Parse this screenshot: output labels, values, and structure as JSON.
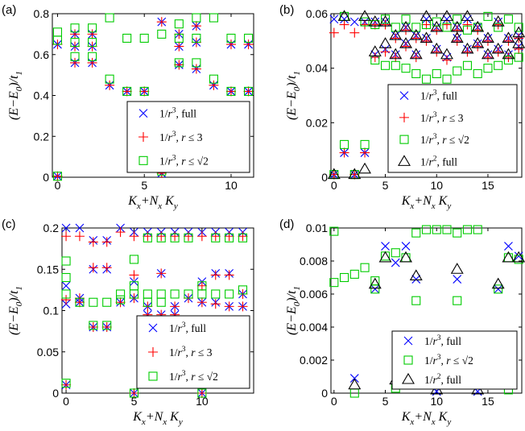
{
  "chart_data": [
    {
      "type": "scatter",
      "panel_label": "(a)",
      "xlabel": "K_x+N_x K_y",
      "ylabel": "(E−E_0)/t_1",
      "xlim": [
        -0.3,
        11.3
      ],
      "ylim": [
        0,
        0.8
      ],
      "xticks": [
        0,
        5,
        10
      ],
      "yticks": [
        0,
        0.2,
        0.4,
        0.6,
        0.8
      ],
      "ytick_labels": [
        "0",
        "0.2",
        "0.4",
        "0.6",
        "0.8"
      ],
      "legend": {
        "position": "lower-right",
        "entries": [
          "1/r^3, full",
          "1/r^3, r ≤ 3",
          "1/r^3, r ≤ √2"
        ]
      },
      "series": [
        {
          "legend_index": 0,
          "marker": "x",
          "color": "#0000ff",
          "x": [
            0,
            0,
            1,
            1,
            1,
            2,
            2,
            2,
            3,
            4,
            5,
            6,
            6,
            7,
            7,
            7,
            8,
            8,
            8,
            9,
            10,
            10,
            11,
            11
          ],
          "y": [
            0.005,
            0.65,
            0.7,
            0.64,
            0.56,
            0.7,
            0.64,
            0.56,
            0.45,
            0.42,
            0.42,
            0.02,
            0.76,
            0.7,
            0.64,
            0.55,
            0.74,
            0.66,
            0.53,
            0.45,
            0.42,
            0.65,
            0.42,
            0.65
          ]
        },
        {
          "legend_index": 1,
          "marker": "+",
          "color": "#ff0000",
          "x": [
            0,
            0,
            1,
            1,
            1,
            2,
            2,
            2,
            3,
            4,
            5,
            6,
            6,
            7,
            7,
            7,
            8,
            8,
            8,
            9,
            10,
            10,
            11,
            11
          ],
          "y": [
            0.005,
            0.65,
            0.7,
            0.64,
            0.56,
            0.7,
            0.64,
            0.56,
            0.45,
            0.42,
            0.42,
            0.02,
            0.76,
            0.7,
            0.64,
            0.55,
            0.74,
            0.66,
            0.53,
            0.45,
            0.42,
            0.65,
            0.42,
            0.65
          ]
        },
        {
          "legend_index": 2,
          "marker": "square",
          "color": "#00cc00",
          "x": [
            0,
            0,
            0,
            1,
            1,
            1,
            2,
            2,
            2,
            3,
            3,
            4,
            4,
            5,
            5,
            6,
            6,
            7,
            7,
            7,
            8,
            8,
            8,
            9,
            9,
            10,
            10,
            11,
            11
          ],
          "y": [
            0.005,
            0.67,
            0.71,
            0.73,
            0.66,
            0.59,
            0.73,
            0.66,
            0.59,
            0.78,
            0.48,
            0.68,
            0.42,
            0.68,
            0.42,
            0.03,
            0.7,
            0.75,
            0.68,
            0.56,
            0.78,
            0.68,
            0.56,
            0.48,
            0.78,
            0.68,
            0.42,
            0.68,
            0.42
          ]
        }
      ]
    },
    {
      "type": "scatter",
      "panel_label": "(b)",
      "xlabel": "K_x+N_x K_y",
      "ylabel": "(E−E_0)/t_1",
      "xlim": [
        -0.3,
        18.3
      ],
      "ylim": [
        0,
        0.06
      ],
      "xticks": [
        0,
        5,
        10,
        15
      ],
      "yticks": [
        0,
        0.02,
        0.04,
        0.06
      ],
      "ytick_labels": [
        "0",
        "0.02",
        "0.04",
        "0.06"
      ],
      "legend": {
        "position": "lower-right",
        "entries": [
          "1/r^3, full",
          "1/r^3, r ≤ 3",
          "1/r^3, r ≤ √2",
          "1/r^2, full"
        ]
      },
      "series": [
        {
          "legend_index": 0,
          "marker": "x",
          "color": "#0000ff",
          "x": [
            0,
            0,
            1,
            1,
            2,
            2,
            3,
            3,
            4,
            4,
            5,
            5,
            6,
            6,
            7,
            7,
            8,
            8,
            9,
            9,
            10,
            10,
            11,
            11,
            12,
            12,
            13,
            13,
            14,
            14,
            15,
            15,
            16,
            16,
            17,
            17,
            18,
            18
          ],
          "y": [
            0.001,
            0.058,
            0.009,
            0.058,
            0.001,
            0.057,
            0.009,
            0.057,
            0.045,
            0.057,
            0.047,
            0.057,
            0.045,
            0.052,
            0.049,
            0.055,
            0.045,
            0.052,
            0.051,
            0.058,
            0.047,
            0.055,
            0.044,
            0.058,
            0.051,
            0.055,
            0.047,
            0.058,
            0.049,
            0.055,
            0.045,
            0.051,
            0.047,
            0.057,
            0.045,
            0.051,
            0.048,
            0.052
          ]
        },
        {
          "legend_index": 1,
          "marker": "+",
          "color": "#ff0000",
          "x": [
            0,
            0,
            1,
            1,
            2,
            2,
            3,
            3,
            4,
            4,
            5,
            5,
            6,
            6,
            7,
            7,
            8,
            8,
            9,
            9,
            10,
            10,
            11,
            11,
            12,
            12,
            13,
            13,
            14,
            14,
            15,
            15,
            16,
            16,
            17,
            17,
            18,
            18
          ],
          "y": [
            0.001,
            0.053,
            0.009,
            0.056,
            0.001,
            0.053,
            0.009,
            0.056,
            0.044,
            0.056,
            0.046,
            0.056,
            0.044,
            0.051,
            0.048,
            0.054,
            0.044,
            0.051,
            0.05,
            0.056,
            0.046,
            0.054,
            0.043,
            0.056,
            0.05,
            0.054,
            0.046,
            0.056,
            0.048,
            0.054,
            0.044,
            0.05,
            0.046,
            0.056,
            0.044,
            0.05,
            0.047,
            0.051
          ]
        },
        {
          "legend_index": 2,
          "marker": "square",
          "color": "#00cc00",
          "x": [
            0,
            1,
            1,
            2,
            3,
            3,
            4,
            4,
            5,
            5,
            6,
            6,
            7,
            7,
            8,
            8,
            9,
            9,
            10,
            10,
            11,
            11,
            12,
            12,
            13,
            13,
            14,
            14,
            15,
            15,
            16,
            16,
            17,
            17,
            18,
            18
          ],
          "y": [
            0.001,
            0.012,
            0.059,
            0.001,
            0.012,
            0.057,
            0.043,
            0.056,
            0.041,
            0.058,
            0.041,
            0.055,
            0.04,
            0.058,
            0.038,
            0.055,
            0.036,
            0.056,
            0.038,
            0.057,
            0.036,
            0.055,
            0.039,
            0.058,
            0.041,
            0.054,
            0.038,
            0.055,
            0.04,
            0.059,
            0.041,
            0.055,
            0.043,
            0.058,
            0.044,
            0.055
          ]
        },
        {
          "legend_index": 3,
          "marker": "triangle",
          "color": "#000000",
          "x": [
            0,
            1,
            2,
            3,
            3,
            4,
            4,
            5,
            5,
            6,
            6,
            7,
            7,
            8,
            8,
            9,
            9,
            10,
            10,
            11,
            11,
            12,
            12,
            13,
            13,
            14,
            14,
            15,
            15,
            16,
            16,
            17,
            17,
            18,
            18
          ],
          "y": [
            0.001,
            0.059,
            0.001,
            0.059,
            0.003,
            0.046,
            0.057,
            0.049,
            0.057,
            0.045,
            0.052,
            0.049,
            0.055,
            0.045,
            0.052,
            0.051,
            0.059,
            0.047,
            0.055,
            0.045,
            0.059,
            0.051,
            0.055,
            0.047,
            0.059,
            0.049,
            0.055,
            0.045,
            0.051,
            0.047,
            0.057,
            0.045,
            0.051,
            0.049,
            0.053
          ]
        }
      ]
    },
    {
      "type": "scatter",
      "panel_label": "(c)",
      "xlabel": "K_x+N_x K_y",
      "ylabel": "(E−E_0)/t_1",
      "xlim": [
        -0.3,
        13.8
      ],
      "ylim": [
        0,
        0.2
      ],
      "xticks": [
        0,
        5,
        10
      ],
      "yticks": [
        0,
        0.05,
        0.1,
        0.15,
        0.2
      ],
      "ytick_labels": [
        "0",
        "0.05",
        "0.1",
        "0.15",
        "0.2"
      ],
      "legend": {
        "position": "lower-right",
        "entries": [
          "1/r^3, full",
          "1/r^3, r ≤ 3",
          "1/r^3, r ≤ √2"
        ]
      },
      "series": [
        {
          "legend_index": 0,
          "marker": "x",
          "color": "#0000ff",
          "x": [
            0,
            0,
            0,
            0,
            1,
            1,
            1,
            2,
            2,
            2,
            3,
            3,
            3,
            4,
            4,
            5,
            5,
            5,
            5,
            6,
            6,
            6,
            7,
            7,
            7,
            8,
            8,
            8,
            9,
            9,
            10,
            10,
            10,
            10,
            11,
            11,
            11,
            12,
            12,
            12,
            13,
            13,
            13
          ],
          "y": [
            0.01,
            0.108,
            0.13,
            0.2,
            0.2,
            0.115,
            0.11,
            0.185,
            0.15,
            0.08,
            0.185,
            0.15,
            0.08,
            0.11,
            0.2,
            0.0,
            0.135,
            0.115,
            0.195,
            0.195,
            0.105,
            0.095,
            0.195,
            0.145,
            0.095,
            0.195,
            0.105,
            0.095,
            0.195,
            0.115,
            0.0,
            0.135,
            0.11,
            0.195,
            0.195,
            0.145,
            0.11,
            0.195,
            0.145,
            0.105,
            0.195,
            0.105,
            0.12
          ]
        },
        {
          "legend_index": 1,
          "marker": "+",
          "color": "#ff0000",
          "x": [
            0,
            0,
            0,
            1,
            1,
            1,
            2,
            2,
            2,
            3,
            3,
            3,
            4,
            4,
            5,
            5,
            5,
            5,
            6,
            6,
            6,
            7,
            7,
            7,
            8,
            8,
            8,
            9,
            9,
            10,
            10,
            10,
            10,
            11,
            11,
            11,
            12,
            12,
            12,
            13,
            13,
            13
          ],
          "y": [
            0.01,
            0.113,
            0.19,
            0.19,
            0.115,
            0.11,
            0.183,
            0.152,
            0.08,
            0.183,
            0.152,
            0.08,
            0.11,
            0.195,
            0.0,
            0.143,
            0.115,
            0.19,
            0.19,
            0.105,
            0.095,
            0.19,
            0.145,
            0.095,
            0.19,
            0.105,
            0.095,
            0.19,
            0.115,
            0.0,
            0.13,
            0.11,
            0.19,
            0.19,
            0.143,
            0.108,
            0.19,
            0.143,
            0.105,
            0.19,
            0.105,
            0.12
          ]
        },
        {
          "legend_index": 2,
          "marker": "square",
          "color": "#00cc00",
          "x": [
            0,
            0,
            0,
            0,
            1,
            2,
            2,
            3,
            3,
            4,
            4,
            5,
            5,
            5,
            5,
            6,
            6,
            6,
            7,
            7,
            7,
            8,
            8,
            9,
            9,
            10,
            10,
            10,
            11,
            11,
            12,
            12,
            13,
            13
          ],
          "y": [
            0.012,
            0.16,
            0.14,
            0.12,
            0.11,
            0.11,
            0.082,
            0.11,
            0.082,
            0.113,
            0.12,
            0.0,
            0.162,
            0.12,
            0.13,
            0.188,
            0.12,
            0.11,
            0.188,
            0.12,
            0.11,
            0.188,
            0.12,
            0.188,
            0.12,
            0.0,
            0.13,
            0.12,
            0.188,
            0.12,
            0.188,
            0.12,
            0.188,
            0.125
          ]
        }
      ]
    },
    {
      "type": "scatter",
      "panel_label": "(d)",
      "xlabel": "K_x+N_x K_y",
      "ylabel": "(E−E_0)/t_1",
      "xlim": [
        -0.3,
        18.3
      ],
      "ylim": [
        0,
        0.01
      ],
      "xticks": [
        0,
        5,
        10,
        15
      ],
      "yticks": [
        0,
        0.002,
        0.004,
        0.006,
        0.008,
        0.01
      ],
      "ytick_labels": [
        "0",
        "0.002",
        "0.004",
        "0.006",
        "0.008",
        "0.01"
      ],
      "legend": {
        "position": "lower-right",
        "entries": [
          "1/r^3, full",
          "1/r^3, r ≤ √2",
          "1/r^2, full"
        ]
      },
      "series": [
        {
          "legend_index": 0,
          "marker": "x",
          "color": "#0000ff",
          "x": [
            2,
            4,
            5,
            6,
            7,
            8,
            10,
            12,
            14,
            16,
            17,
            18
          ],
          "y": [
            0.0009,
            0.0063,
            0.0089,
            0.0079,
            0.0089,
            0.0069,
            0.0001,
            0.0069,
            0.0001,
            0.0063,
            0.0089,
            0.0083
          ]
        },
        {
          "legend_index": 1,
          "marker": "square",
          "color": "#00cc00",
          "x": [
            0,
            0,
            1,
            2,
            2,
            3,
            4,
            4,
            5,
            6,
            6,
            7,
            8,
            8,
            9,
            10,
            11,
            12,
            12,
            13,
            14,
            16,
            17,
            17,
            18
          ],
          "y": [
            0.0098,
            0.0067,
            0.007,
            0.0,
            0.0072,
            0.0076,
            0.0068,
            0.0063,
            0.0083,
            0.0085,
            0.0003,
            0.0082,
            0.0097,
            0.0056,
            0.0099,
            0.0099,
            0.0099,
            0.0097,
            0.0056,
            0.0099,
            0.0099,
            0.0063,
            0.0002,
            0.0082,
            0.0081
          ]
        },
        {
          "legend_index": 2,
          "marker": "triangle",
          "color": "#000000",
          "x": [
            2,
            4,
            5,
            6,
            7,
            8,
            10,
            12,
            14,
            16,
            17,
            18
          ],
          "y": [
            0.0005,
            0.0066,
            0.0082,
            0.0008,
            0.0082,
            0.0071,
            0.0002,
            0.0075,
            0.0002,
            0.0066,
            0.0082,
            0.0082
          ]
        }
      ]
    }
  ]
}
